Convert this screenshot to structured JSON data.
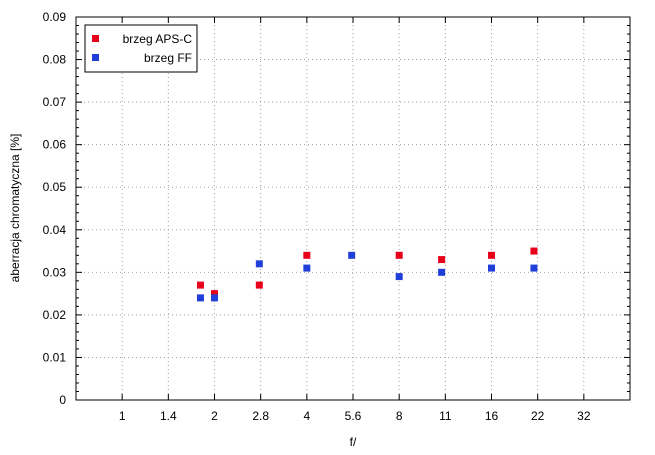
{
  "chart_data": {
    "type": "scatter",
    "xlabel": "f/",
    "ylabel": "aberracja chromatyczna [%]",
    "x_scale": "log2",
    "xlim": [
      0.7071,
      45.25
    ],
    "ylim": [
      0,
      0.09
    ],
    "grid": true,
    "x_ticks": [
      {
        "label": "1",
        "value": 1
      },
      {
        "label": "1.4",
        "value": 1.4142
      },
      {
        "label": "2",
        "value": 2
      },
      {
        "label": "2.8",
        "value": 2.8284
      },
      {
        "label": "4",
        "value": 4
      },
      {
        "label": "5.6",
        "value": 5.6569
      },
      {
        "label": "8",
        "value": 8
      },
      {
        "label": "11",
        "value": 11.3137
      },
      {
        "label": "16",
        "value": 16
      },
      {
        "label": "22",
        "value": 22.6274
      },
      {
        "label": "32",
        "value": 32
      }
    ],
    "y_ticks": [
      "0",
      "0.01",
      "0.02",
      "0.03",
      "0.04",
      "0.05",
      "0.06",
      "0.07",
      "0.08",
      "0.09"
    ],
    "legend_position": "top-left",
    "series": [
      {
        "name": "brzeg APS-C",
        "color": "#e8001a",
        "x": [
          1.8,
          2,
          2.8,
          4,
          8,
          11,
          16,
          22
        ],
        "y": [
          0.027,
          0.025,
          0.027,
          0.034,
          0.034,
          0.033,
          0.034,
          0.035
        ]
      },
      {
        "name": "brzeg FF",
        "color": "#1f3fd8",
        "x": [
          1.8,
          2,
          2.8,
          4,
          5.6,
          8,
          11,
          16,
          22
        ],
        "y": [
          0.024,
          0.024,
          0.032,
          0.031,
          0.034,
          0.029,
          0.03,
          0.031,
          0.031
        ]
      }
    ]
  }
}
